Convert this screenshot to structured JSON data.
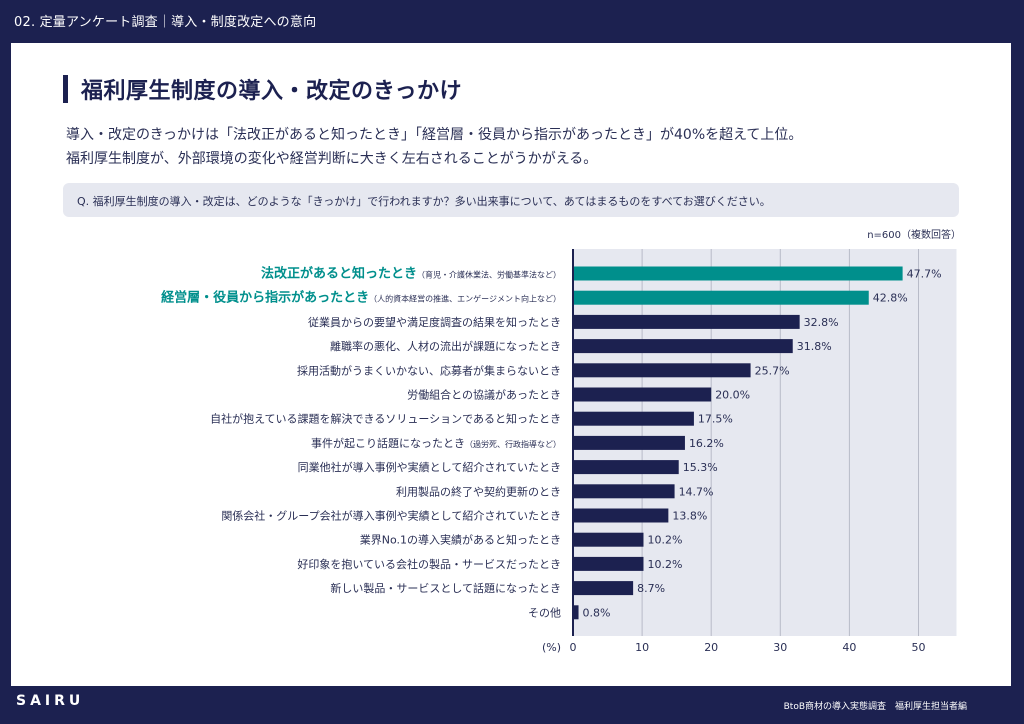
{
  "header": {
    "section_title": "02. 定量アンケート調査｜導入・制度改定への意向"
  },
  "page": {
    "title": "福利厚生制度の導入・改定のきっかけ",
    "summary_lines": [
      "導入・改定のきっかけは「法改正があると知ったとき」「経営層・役員から指示があったとき」が40%を超えて上位。",
      "福利厚生制度が、外部環境の変化や経営判断に大きく左右されることがうかがえる。"
    ],
    "question": "Q. 福利厚生制度の導入・改定は、どのような「きっかけ」で行われますか？多い出来事について、あてはまるものをすべてお選びください。",
    "sample_note": "n=600（複数回答）"
  },
  "colors": {
    "highlight": "#008f8c",
    "bar": "#1c2150",
    "plot_bg": "#e6e8f0",
    "grid": "#b8bbc8",
    "background": "#1c2150"
  },
  "chart_data": {
    "type": "bar",
    "orientation": "horizontal",
    "title": "福利厚生制度の導入・改定のきっかけ",
    "xlabel": "(%)",
    "ylabel": "",
    "xlim": [
      0,
      55.5
    ],
    "xticks": [
      0,
      10,
      20,
      30,
      40,
      50
    ],
    "grid": true,
    "categories": [
      {
        "label": "法改正があると知ったとき",
        "note": "（育児・介護休業法、労働基準法など）",
        "highlight": true
      },
      {
        "label": "経営層・役員から指示があったとき",
        "note": "（人的資本経営の推進、エンゲージメント向上など）",
        "highlight": true
      },
      {
        "label": "従業員からの要望や満足度調査の結果を知ったとき",
        "note": "",
        "highlight": false
      },
      {
        "label": "離職率の悪化、人材の流出が課題になったとき",
        "note": "",
        "highlight": false
      },
      {
        "label": "採用活動がうまくいかない、応募者が集まらないとき",
        "note": "",
        "highlight": false
      },
      {
        "label": "労働組合との協議があったとき",
        "note": "",
        "highlight": false
      },
      {
        "label": "自社が抱えている課題を解決できるソリューションであると知ったとき",
        "note": "",
        "highlight": false
      },
      {
        "label": "事件が起こり話題になったとき",
        "note": "（過労死、行政指導など）",
        "highlight": false
      },
      {
        "label": "同業他社が導入事例や実績として紹介されていたとき",
        "note": "",
        "highlight": false
      },
      {
        "label": "利用製品の終了や契約更新のとき",
        "note": "",
        "highlight": false
      },
      {
        "label": "関係会社・グループ会社が導入事例や実績として紹介されていたとき",
        "note": "",
        "highlight": false
      },
      {
        "label": "業界No.1の導入実績があると知ったとき",
        "note": "",
        "highlight": false
      },
      {
        "label": "好印象を抱いている会社の製品・サービスだったとき",
        "note": "",
        "highlight": false
      },
      {
        "label": "新しい製品・サービスとして話題になったとき",
        "note": "",
        "highlight": false
      },
      {
        "label": "その他",
        "note": "",
        "highlight": false
      }
    ],
    "values": [
      47.7,
      42.8,
      32.8,
      31.8,
      25.7,
      20.0,
      17.5,
      16.2,
      15.3,
      14.7,
      13.8,
      10.2,
      10.2,
      8.7,
      0.8
    ],
    "value_labels": [
      "47.7%",
      "42.8%",
      "32.8%",
      "31.8%",
      "25.7%",
      "20.0%",
      "17.5%",
      "16.2%",
      "15.3%",
      "14.7%",
      "13.8%",
      "10.2%",
      "10.2%",
      "8.7%",
      "0.8%"
    ]
  },
  "footer": {
    "logo": "SAIRU",
    "note": "BtoB商材の導入実態調査　福利厚生担当者編"
  }
}
